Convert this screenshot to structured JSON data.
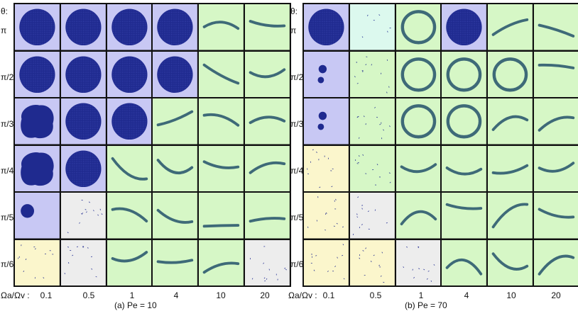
{
  "theta_header": "θ:",
  "row_labels": [
    "π",
    "π/2",
    "π/3",
    "π/4",
    "π/5",
    "π/6"
  ],
  "column_header": "Ωa/Ωv :",
  "column_labels": [
    "0.1",
    "0.5",
    "1",
    "4",
    "10",
    "20"
  ],
  "panels": [
    {
      "caption": "(a) Pe = 10",
      "cells": [
        [
          "blue-disk",
          "blue-disk",
          "blue-disk",
          "blue-disk",
          "green-band",
          "green-band"
        ],
        [
          "blue-disk",
          "blue-disk",
          "blue-disk",
          "blue-disk",
          "green-band",
          "green-band"
        ],
        [
          "blue-rough",
          "blue-disk",
          "blue-disk",
          "green-band",
          "green-band",
          "green-band"
        ],
        [
          "blue-rough",
          "blue-disk",
          "green-band",
          "green-band",
          "green-band",
          "green-band"
        ],
        [
          "blue-small",
          "gray-dots",
          "green-band",
          "green-band",
          "green-band",
          "green-band"
        ],
        [
          "yellow-dots",
          "gray-dots",
          "green-band",
          "green-band",
          "green-band",
          "gray-dots"
        ]
      ]
    },
    {
      "caption": "(b) Pe = 70",
      "cells": [
        [
          "blue-disk",
          "cyan-dots",
          "green-ring",
          "blue-disk",
          "green-band",
          "green-band"
        ],
        [
          "blue-dots",
          "green-dots",
          "green-ring",
          "green-ring",
          "green-ring",
          "green-band"
        ],
        [
          "blue-dots",
          "green-dots",
          "green-ring",
          "green-ring",
          "green-band",
          "green-band"
        ],
        [
          "yellow-dots",
          "green-dots",
          "green-band",
          "green-band",
          "green-band",
          "green-band"
        ],
        [
          "yellow-dots",
          "gray-dots",
          "green-band",
          "green-band",
          "green-band",
          "green-band"
        ],
        [
          "yellow-dots",
          "yellow-dots",
          "gray-dots",
          "green-band",
          "green-band",
          "green-band"
        ]
      ]
    }
  ],
  "colors": {
    "blue-bg": "#c8c8f4",
    "green-bg": "#d6f7c6",
    "yellow-bg": "#fbf6cc",
    "gray-bg": "#ededed",
    "cyan-bg": "#dcf9ee",
    "disk": "#1f2a8f",
    "band": "#3e6a78"
  }
}
